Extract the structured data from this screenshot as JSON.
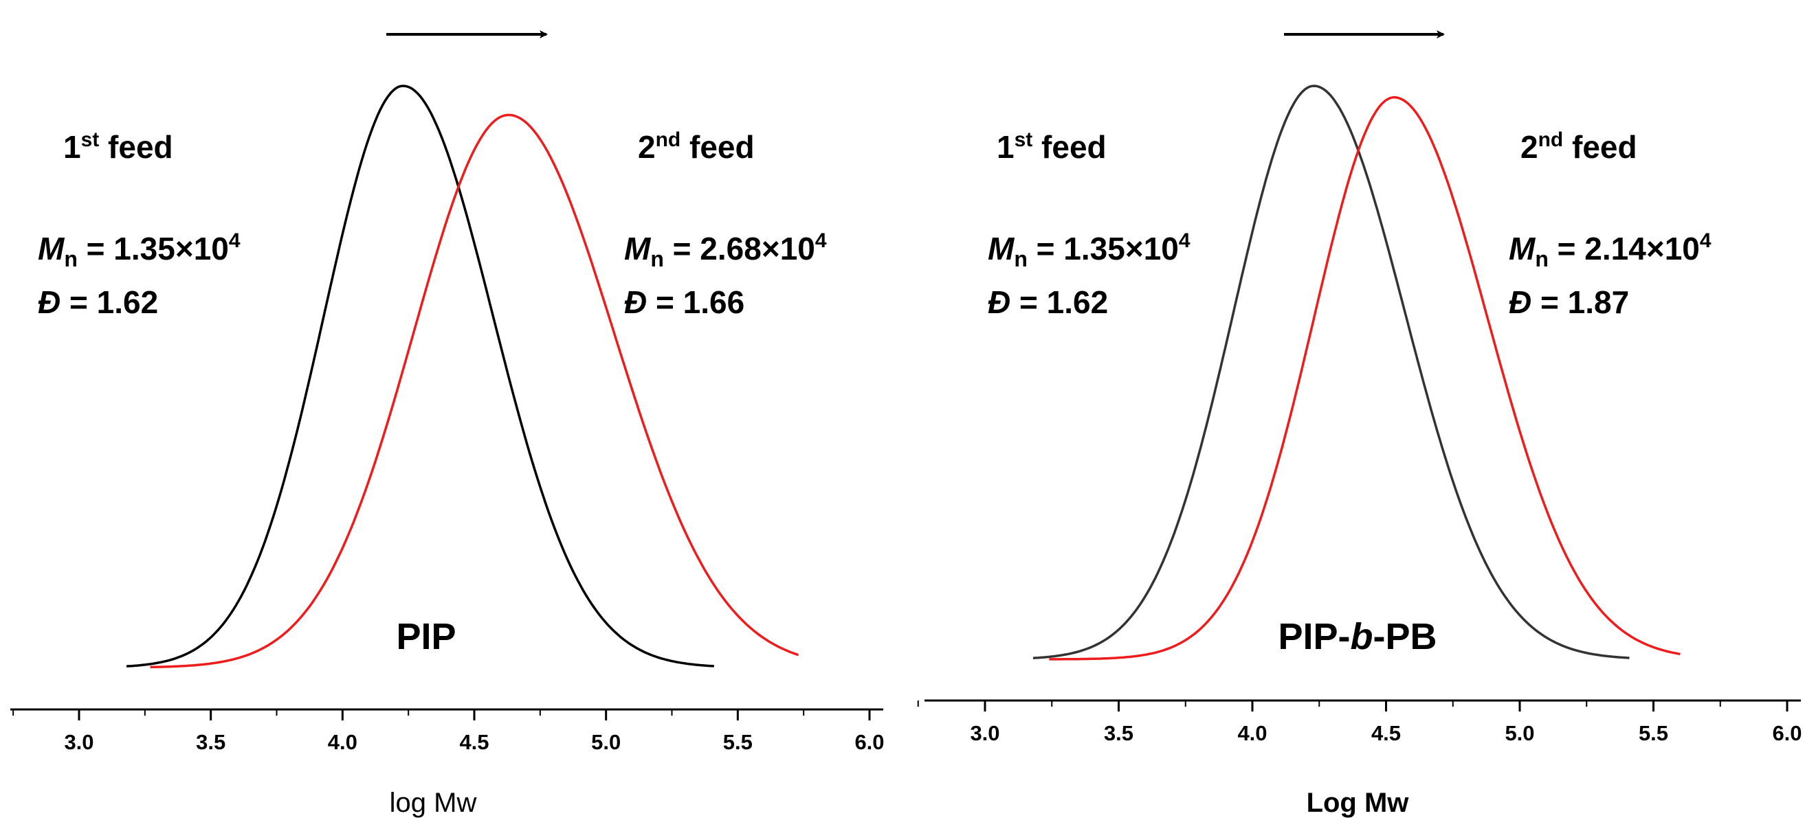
{
  "chart_data": [
    {
      "type": "line",
      "title": "PIP",
      "xlabel": "log Mw",
      "ylabel": "",
      "xlim": [
        2.75,
        6.0
      ],
      "x_ticks": [
        "3.0",
        "3.5",
        "4.0",
        "4.5",
        "5.0",
        "5.5",
        "6.0"
      ],
      "grid": false,
      "arrow": "right",
      "series": [
        {
          "color": "#000000",
          "peak": 4.23,
          "sigma_left": 0.3,
          "sigma_right": 0.34,
          "x_range": [
            3.18,
            5.41
          ],
          "label": {
            "feed_base": "1",
            "feed_sup": "st",
            "feed_text": " feed",
            "mn_symbol": "M",
            "mn_sub": "n",
            "mn_text": " = 1.35×10",
            "mn_exp": "4",
            "d_symbol": "Đ",
            "d_text": " = 1.62"
          }
        },
        {
          "color": "#ee1c1c",
          "peak": 4.63,
          "sigma_left": 0.36,
          "sigma_right": 0.4,
          "height": 0.95,
          "x_range": [
            3.27,
            5.73
          ],
          "label": {
            "feed_base": "2",
            "feed_sup": "nd",
            "feed_text": " feed",
            "mn_symbol": "M",
            "mn_sub": "n",
            "mn_text": " = 2.68×10",
            "mn_exp": "4",
            "d_symbol": "Đ",
            "d_text": " = 1.66"
          }
        }
      ]
    },
    {
      "type": "line",
      "title_parts": [
        "PIP-",
        "b",
        "-PB"
      ],
      "xlabel": "Log Mw",
      "ylabel": "",
      "xlim": [
        2.75,
        6.0
      ],
      "x_ticks": [
        "3.0",
        "3.5",
        "4.0",
        "4.5",
        "5.0",
        "5.5",
        "6.0"
      ],
      "grid": false,
      "arrow": "right",
      "series": [
        {
          "color": "#333333",
          "peak": 4.23,
          "sigma_left": 0.3,
          "sigma_right": 0.34,
          "x_range": [
            3.18,
            5.41
          ],
          "label": {
            "feed_base": "1",
            "feed_sup": "st",
            "feed_text": " feed",
            "mn_symbol": "M",
            "mn_sub": "n",
            "mn_text": " = 1.35×10",
            "mn_exp": "4",
            "d_symbol": "Đ",
            "d_text": " = 1.62"
          }
        },
        {
          "color": "#ee1c1c",
          "peak": 4.53,
          "sigma_left": 0.3,
          "sigma_right": 0.35,
          "height": 0.98,
          "x_range": [
            3.24,
            5.6
          ],
          "label": {
            "feed_base": "2",
            "feed_sup": "nd",
            "feed_text": " feed",
            "mn_symbol": "M",
            "mn_sub": "n",
            "mn_text": " = 2.14×10",
            "mn_exp": "4",
            "d_symbol": "Đ",
            "d_text": " = 1.87"
          }
        }
      ]
    }
  ]
}
